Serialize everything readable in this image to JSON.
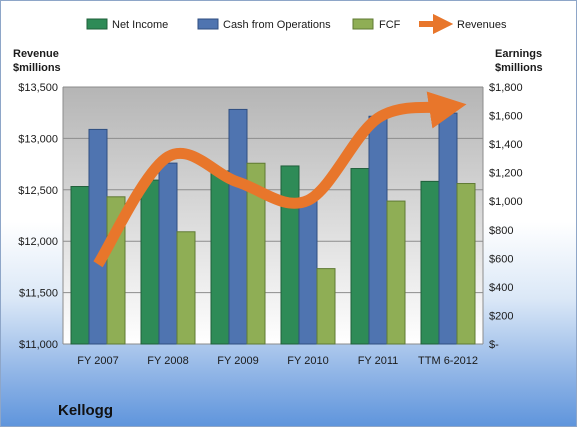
{
  "colors": {
    "net_income": "#2e8b57",
    "cash_from_operations": "#4f74b0",
    "fcf": "#8fae55",
    "revenues": "#e8762b"
  },
  "chart_data": {
    "type": "bar",
    "company": "Kellogg",
    "categories": [
      "FY 2007",
      "FY 2008",
      "FY 2009",
      "FY 2010",
      "FY 2011",
      "TTM 6-2012"
    ],
    "left_axis_title": [
      "Revenue",
      "$millions"
    ],
    "right_axis_title": [
      "Earnings",
      "$millions"
    ],
    "left_ticks": [
      "$13,500",
      "$13,000",
      "$12,500",
      "$12,000",
      "$11,500",
      "$11,000"
    ],
    "right_ticks": [
      "$1,800",
      "$1,600",
      "$1,400",
      "$1,200",
      "$1,000",
      "$800",
      "$600",
      "$400",
      "$200",
      "$-"
    ],
    "left_ylim": [
      11000,
      13500
    ],
    "right_ylim": [
      0,
      1800
    ],
    "legend_position": "top",
    "grid": true,
    "series": [
      {
        "name": "Net Income",
        "axis": "right",
        "kind": "bar",
        "values": [
          1103,
          1148,
          1212,
          1247,
          1229,
          1139
        ]
      },
      {
        "name": "Cash from Operations",
        "axis": "right",
        "kind": "bar",
        "values": [
          1503,
          1267,
          1643,
          1008,
          1595,
          1617
        ]
      },
      {
        "name": "FCF",
        "axis": "right",
        "kind": "bar",
        "values": [
          1031,
          786,
          1266,
          528,
          1001,
          1124
        ]
      },
      {
        "name": "Revenues",
        "axis": "left",
        "kind": "line",
        "values": [
          11776,
          12822,
          12575,
          12397,
          13198,
          13304
        ]
      }
    ]
  }
}
